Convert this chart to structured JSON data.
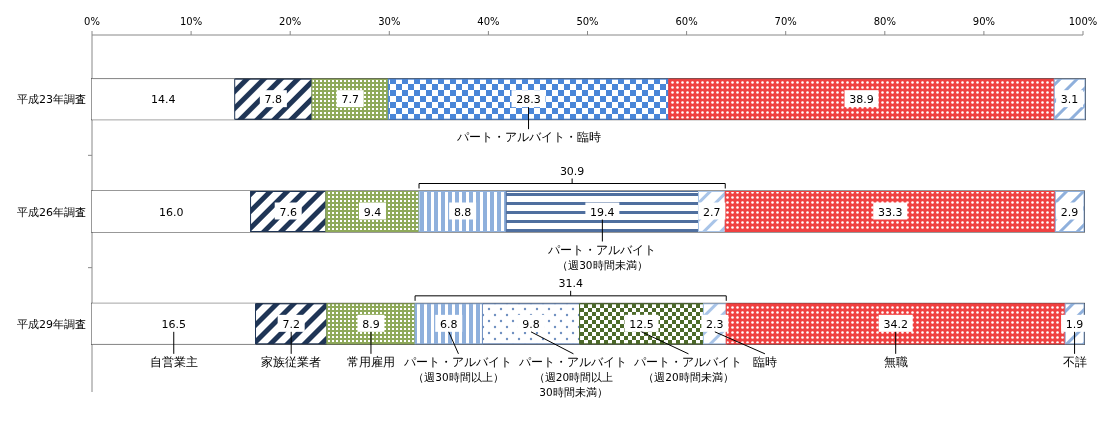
{
  "chart_data": {
    "type": "bar",
    "orientation": "horizontal",
    "stacked": true,
    "data_labels": true,
    "categories": [
      "平成23年調査",
      "平成26年調査",
      "平成29年調査"
    ],
    "series": [
      {
        "name": "自営業主",
        "color": "#ffffff",
        "values": [
          14.4,
          16.0,
          16.5
        ],
        "value_labels": [
          "14.4",
          "16.0",
          "16.5"
        ]
      },
      {
        "name": "家族従業者",
        "color": "#1f3556",
        "values": [
          7.8,
          7.6,
          7.2
        ]
      },
      {
        "name": "常用雇用",
        "color": "#8faa5a",
        "values": [
          7.7,
          9.4,
          8.9
        ]
      },
      {
        "name": "パート・アルバイト・臨時",
        "color": "#4a86d8",
        "values": [
          28.3,
          null,
          null
        ]
      },
      {
        "name": "パート・アルバイト（週30時間以上）",
        "color": "#8fb0dc",
        "values": [
          null,
          8.8,
          6.8
        ]
      },
      {
        "name": "パート・アルバイト（週20時間以上30時間未満）",
        "color": "#6f8fc0",
        "values": [
          null,
          null,
          9.8
        ]
      },
      {
        "name": "パート・アルバイト（週30時間未満）",
        "color": "#4f6f9f",
        "values": [
          null,
          19.4,
          null
        ]
      },
      {
        "name": "パート・アルバイト（週20時間未満）",
        "color": "#4d6a2a",
        "values": [
          null,
          null,
          12.5
        ]
      },
      {
        "name": "臨時",
        "color": "#a8c4e8",
        "values": [
          null,
          2.7,
          2.3
        ]
      },
      {
        "name": "無職",
        "color": "#f04040",
        "values": [
          38.9,
          33.3,
          34.2
        ]
      },
      {
        "name": "不詳",
        "color": "#8fb0dc",
        "values": [
          3.1,
          2.9,
          1.9
        ]
      }
    ],
    "xlim": [
      0,
      100
    ],
    "xticks": [
      {
        "value": 0,
        "label": "0%"
      },
      {
        "value": 10,
        "label": "10%"
      },
      {
        "value": 20,
        "label": "20%"
      },
      {
        "value": 30,
        "label": "30%"
      },
      {
        "value": 40,
        "label": "40%"
      },
      {
        "value": 50,
        "label": "50%"
      },
      {
        "value": 60,
        "label": "60%"
      },
      {
        "value": 70,
        "label": "70%"
      },
      {
        "value": 80,
        "label": "80%"
      },
      {
        "value": 90,
        "label": "90%"
      },
      {
        "value": 100,
        "label": "100%"
      }
    ],
    "annotations": [
      "30.9",
      "31.4"
    ]
  }
}
